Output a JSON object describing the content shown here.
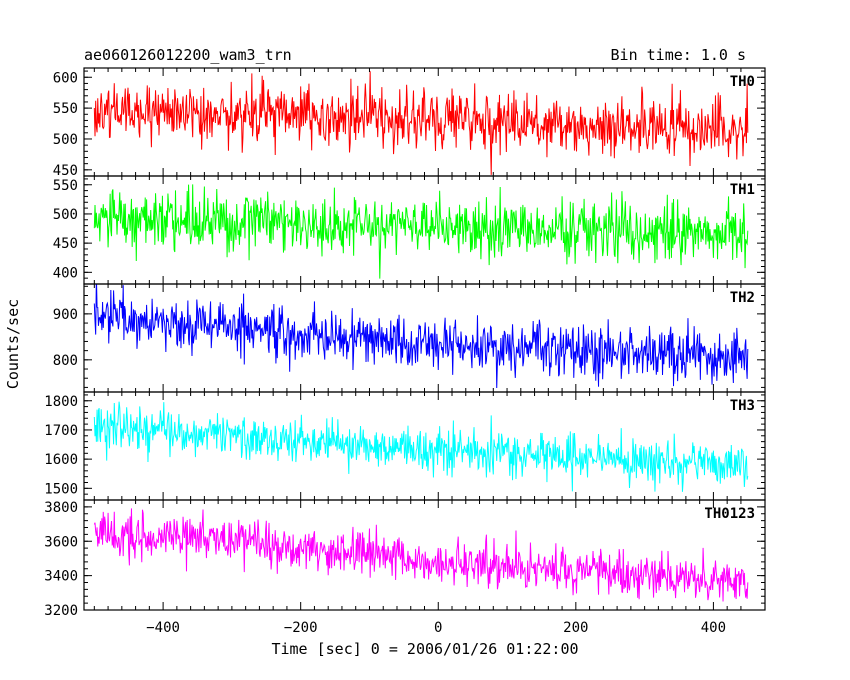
{
  "header": {
    "title": "ae060126012200_wam3_trn",
    "bin_time": "Bin time: 1.0 s"
  },
  "chart_data": {
    "type": "line",
    "title": "ae060126012200_wam3_trn",
    "xlabel": "Time [sec] 0 = 2006/01/26 01:22:00",
    "ylabel": "Counts/sec",
    "xlim": [
      -515,
      475
    ],
    "x_ticks": [
      -400,
      -200,
      0,
      200,
      400
    ],
    "x_tick_labels": [
      "−400",
      "−200",
      "0",
      "200",
      "400"
    ],
    "x_range_data": [
      -500,
      450
    ],
    "bin_time_s": 1.0,
    "series": [
      {
        "name": "TH0",
        "color": "#ff0000",
        "ylim": [
          440,
          615
        ],
        "yticks": [
          450,
          500,
          550,
          600
        ],
        "trend": [
          [
            -500,
            548
          ],
          [
            -250,
            540
          ],
          [
            0,
            530
          ],
          [
            250,
            522
          ],
          [
            450,
            512
          ]
        ],
        "noise_sd": 25
      },
      {
        "name": "TH1",
        "color": "#00ff00",
        "ylim": [
          380,
          565
        ],
        "yticks": [
          400,
          450,
          500,
          550
        ],
        "trend": [
          [
            -500,
            495
          ],
          [
            -250,
            485
          ],
          [
            0,
            475
          ],
          [
            250,
            472
          ],
          [
            450,
            465
          ]
        ],
        "noise_sd": 25
      },
      {
        "name": "TH2",
        "color": "#0000ff",
        "ylim": [
          730,
          965
        ],
        "yticks": [
          800,
          900
        ],
        "trend": [
          [
            -500,
            895
          ],
          [
            -250,
            865
          ],
          [
            0,
            835
          ],
          [
            250,
            820
          ],
          [
            450,
            805
          ]
        ],
        "noise_sd": 28
      },
      {
        "name": "TH3",
        "color": "#00ffff",
        "ylim": [
          1460,
          1830
        ],
        "yticks": [
          1500,
          1600,
          1700,
          1800
        ],
        "trend": [
          [
            -500,
            1710
          ],
          [
            -250,
            1675
          ],
          [
            0,
            1630
          ],
          [
            250,
            1600
          ],
          [
            450,
            1580
          ]
        ],
        "noise_sd": 38
      },
      {
        "name": "TH0123",
        "color": "#ff00ff",
        "ylim": [
          3200,
          3840
        ],
        "yticks": [
          3200,
          3400,
          3600,
          3800
        ],
        "trend": [
          [
            -500,
            3660
          ],
          [
            -250,
            3580
          ],
          [
            0,
            3480
          ],
          [
            250,
            3410
          ],
          [
            450,
            3360
          ]
        ],
        "noise_sd": 65
      }
    ],
    "grid": false,
    "legend": "panel labels top-right"
  }
}
